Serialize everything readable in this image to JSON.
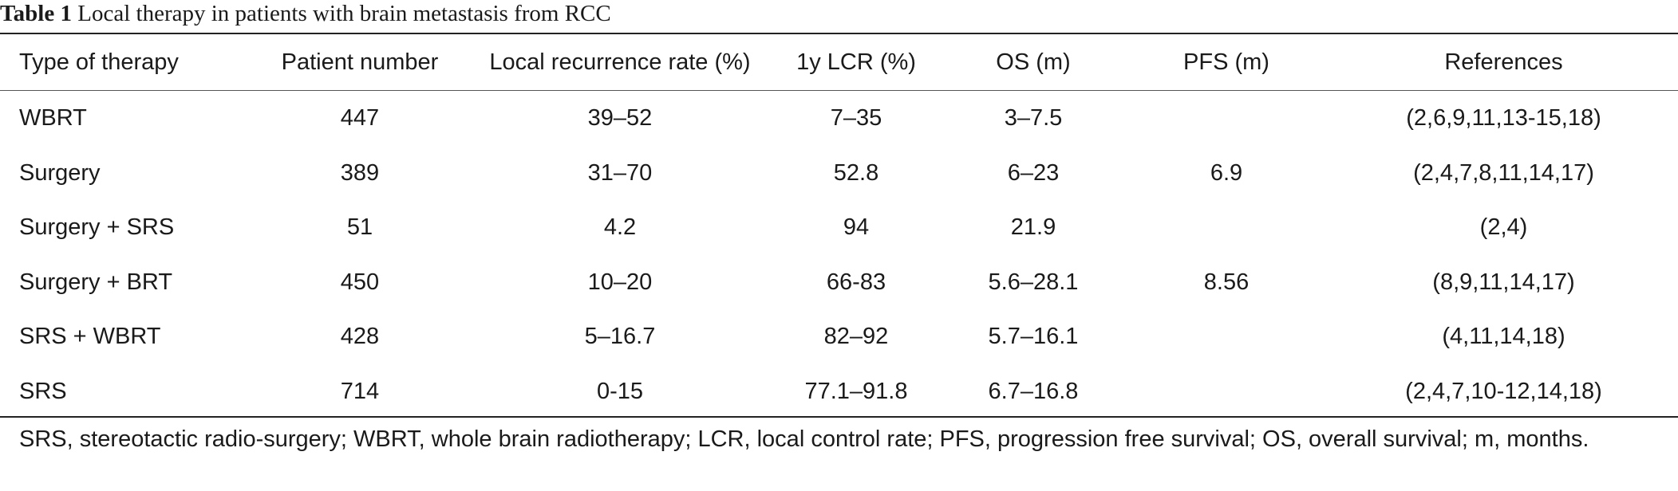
{
  "caption": {
    "label": "Table 1",
    "title": "Local therapy in patients with brain metastasis from RCC"
  },
  "table": {
    "headers": {
      "type": "Type of therapy",
      "patients": "Patient number",
      "recurrence": "Local recurrence rate (%)",
      "lcr": "1y LCR (%)",
      "os": "OS (m)",
      "pfs": "PFS (m)",
      "refs": "References"
    },
    "rows": [
      {
        "type": "WBRT",
        "patients": "447",
        "recurrence": "39–52",
        "lcr": "7–35",
        "os": "3–7.5",
        "pfs": "",
        "refs": "(2,6,9,11,13-15,18)"
      },
      {
        "type": "Surgery",
        "patients": "389",
        "recurrence": "31–70",
        "lcr": "52.8",
        "os": "6–23",
        "pfs": "6.9",
        "refs": "(2,4,7,8,11,14,17)"
      },
      {
        "type": "Surgery + SRS",
        "patients": "51",
        "recurrence": "4.2",
        "lcr": "94",
        "os": "21.9",
        "pfs": "",
        "refs": "(2,4)"
      },
      {
        "type": "Surgery + BRT",
        "patients": "450",
        "recurrence": "10–20",
        "lcr": "66-83",
        "os": "5.6–28.1",
        "pfs": "8.56",
        "refs": "(8,9,11,14,17)"
      },
      {
        "type": "SRS + WBRT",
        "patients": "428",
        "recurrence": "5–16.7",
        "lcr": "82–92",
        "os": "5.7–16.1",
        "pfs": "",
        "refs": "(4,11,14,18)"
      },
      {
        "type": "SRS",
        "patients": "714",
        "recurrence": "0-15",
        "lcr": "77.1–91.8",
        "os": "6.7–16.8",
        "pfs": "",
        "refs": "(2,4,7,10-12,14,18)"
      }
    ]
  },
  "footnote": "SRS, stereotactic radio-surgery; WBRT, whole brain radiotherapy; LCR, local control rate; PFS, progression free survival; OS, overall survival; m, months."
}
